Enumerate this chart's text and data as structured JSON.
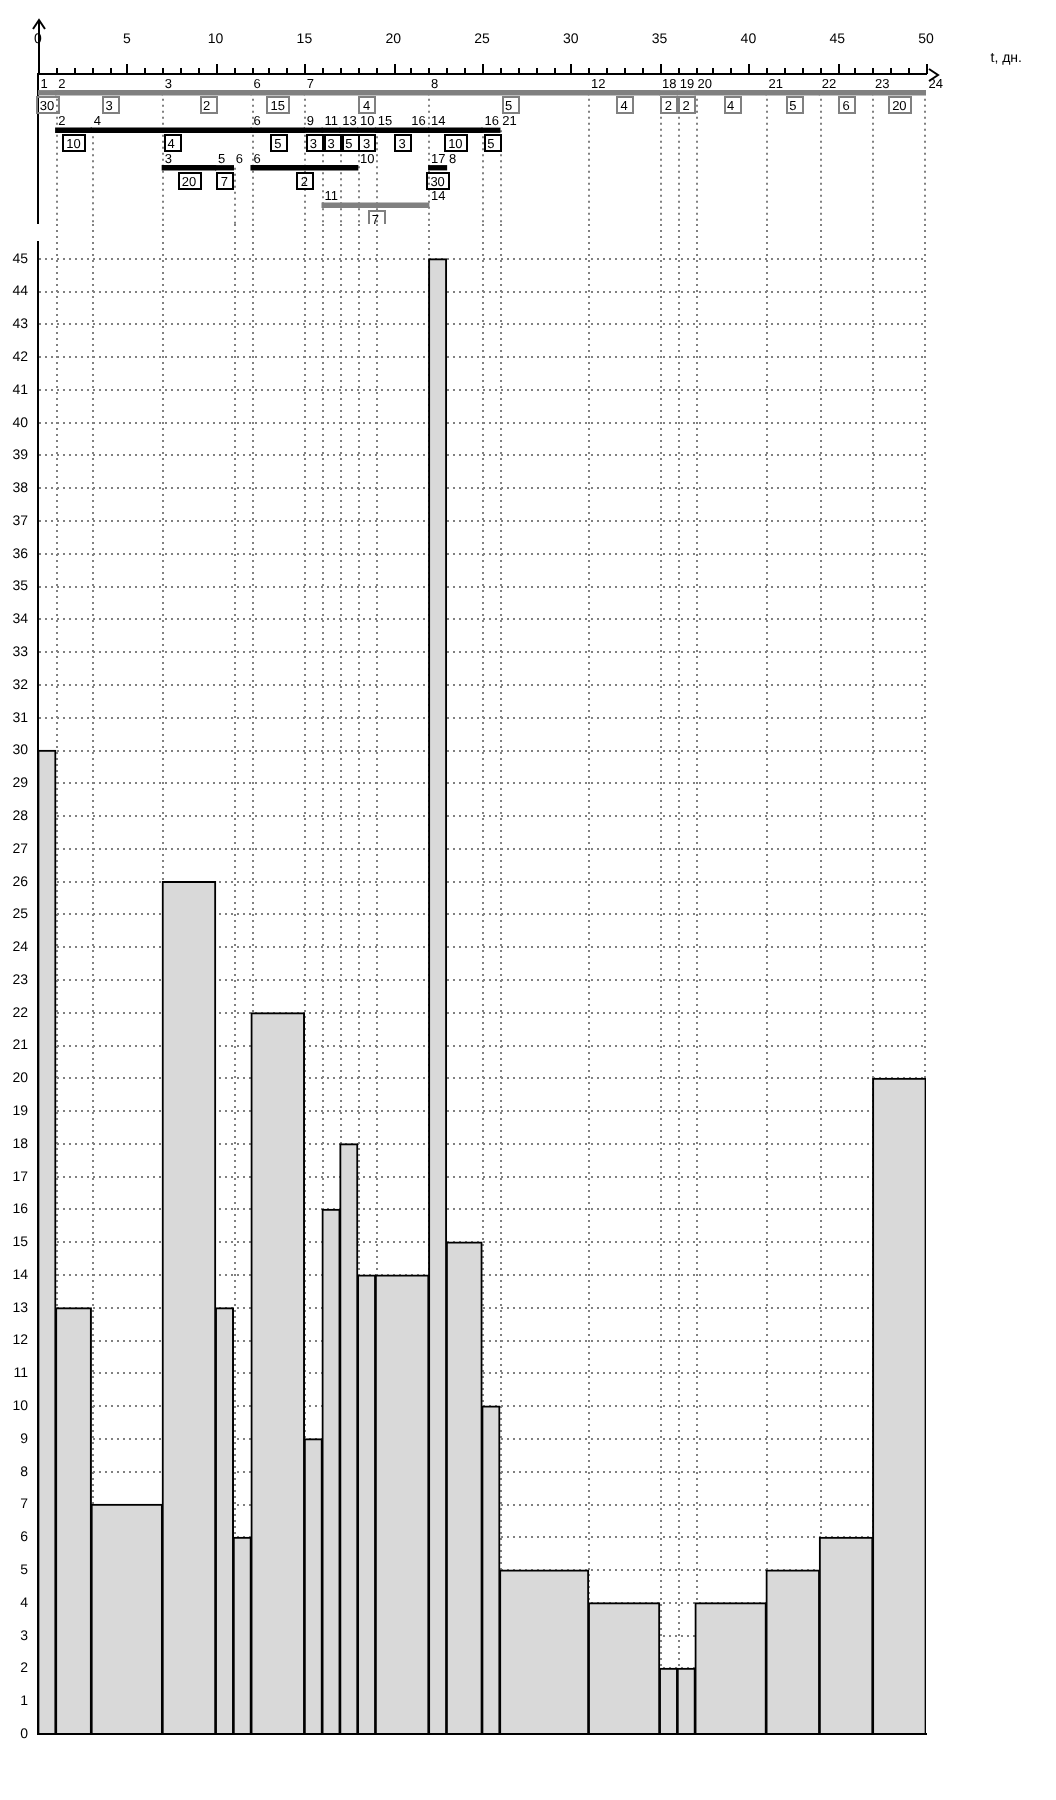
{
  "chart_data": [
    {
      "type": "bar",
      "orientation": "horizontal",
      "categories": [
        null,
        null,
        null,
        null
      ],
      "xlabel": "t, дн.",
      "xlim": [
        0,
        50
      ],
      "xticks": [
        0,
        {
          "value": 1,
          "label": null
        },
        {
          "value": 2,
          "label": null
        },
        {
          "value": 3,
          "label": null
        },
        {
          "value": 4,
          "label": null
        },
        5,
        {
          "value": 6,
          "label": null
        },
        {
          "value": 7,
          "label": null
        },
        {
          "value": 8,
          "label": null
        },
        {
          "value": 9,
          "label": null
        },
        10,
        {
          "value": 11,
          "label": null
        },
        {
          "value": 12,
          "label": null
        },
        {
          "value": 13,
          "label": null
        },
        {
          "value": 14,
          "label": null
        },
        15,
        {
          "value": 16,
          "label": null
        },
        {
          "value": 17,
          "label": null
        },
        {
          "value": 18,
          "label": null
        },
        {
          "value": 19,
          "label": null
        },
        20,
        {
          "value": 21,
          "label": null
        },
        {
          "value": 22,
          "label": null
        },
        {
          "value": 23,
          "label": null
        },
        {
          "value": 24,
          "label": null
        },
        25,
        {
          "value": 26,
          "label": null
        },
        {
          "value": 27,
          "label": null
        },
        {
          "value": 28,
          "label": null
        },
        {
          "value": 29,
          "label": null
        },
        30,
        {
          "value": 31,
          "label": null
        },
        {
          "value": 32,
          "label": null
        },
        {
          "value": 33,
          "label": null
        },
        {
          "value": 34,
          "label": null
        },
        35,
        {
          "value": 36,
          "label": null
        },
        {
          "value": 37,
          "label": null
        },
        {
          "value": 38,
          "label": null
        },
        {
          "value": 39,
          "label": null
        },
        40,
        {
          "value": 41,
          "label": null
        },
        {
          "value": 42,
          "label": null
        },
        {
          "value": 43,
          "label": null
        },
        {
          "value": 44,
          "label": null
        },
        45,
        {
          "value": 46,
          "label": null
        },
        {
          "value": 47,
          "label": null
        },
        {
          "value": 48,
          "label": null
        },
        {
          "value": 49,
          "label": null
        },
        50
      ],
      "series": [
        {
          "values": [
            1,
            2,
            3,
            6
          ],
          "base": [
            0,
            1,
            7,
            16
          ],
          "colors": [
            "#808080",
            "#000000",
            "#000000",
            "#808080"
          ]
        },
        {
          "values": [
            6,
            9,
            1,
            null
          ],
          "base": [
            1,
            3,
            10,
            null
          ],
          "colors": [
            "#808080",
            "#000000",
            "#000000",
            null
          ]
        },
        {
          "values": [
            5,
            3,
            6,
            null
          ],
          "base": [
            7,
            12,
            12,
            null
          ],
          "colors": [
            "#808080",
            "#000000",
            "#000000",
            null
          ]
        },
        {
          "values": [
            3,
            1,
            1,
            null
          ],
          "base": [
            12,
            15,
            22,
            null
          ],
          "colors": [
            "#808080",
            "#000000",
            "#000000",
            null
          ]
        },
        {
          "values": [
            7,
            1,
            null,
            null
          ],
          "base": [
            15,
            16,
            null,
            null
          ],
          "colors": [
            "#808080",
            "#000000",
            null,
            null
          ]
        },
        {
          "values": [
            9,
            1,
            null,
            null
          ],
          "base": [
            22,
            17,
            null,
            null
          ],
          "colors": [
            "#808080",
            "#000000",
            null,
            null
          ]
        },
        {
          "values": [
            4,
            1,
            null,
            null
          ],
          "base": [
            31,
            18,
            null,
            null
          ],
          "colors": [
            "#808080",
            "#000000",
            null,
            null
          ]
        },
        {
          "values": [
            1,
            3,
            null,
            null
          ],
          "base": [
            35,
            19,
            null,
            null
          ],
          "colors": [
            "#808080",
            "#000000",
            null,
            null
          ]
        },
        {
          "values": [
            1,
            3,
            null,
            null
          ],
          "base": [
            36,
            22,
            null,
            null
          ],
          "colors": [
            "#808080",
            "#000000",
            null,
            null
          ]
        },
        {
          "values": [
            4,
            1,
            null,
            null
          ],
          "base": [
            37,
            25,
            null,
            null
          ],
          "colors": [
            "#808080",
            "#000000",
            null,
            null
          ]
        },
        {
          "values": [
            3,
            null,
            null,
            null
          ],
          "base": [
            41,
            null,
            null,
            null
          ],
          "colors": [
            "#808080",
            null,
            null,
            null
          ]
        },
        {
          "values": [
            3,
            null,
            null,
            null
          ],
          "base": [
            44,
            null,
            null,
            null
          ],
          "colors": [
            "#808080",
            null,
            null,
            null
          ]
        },
        {
          "values": [
            3,
            null,
            null,
            null
          ],
          "base": [
            47,
            null,
            null,
            null
          ],
          "colors": [
            "#808080",
            null,
            null,
            null
          ]
        }
      ],
      "annotations": [
        {
          "text": "1",
          "x": 0
        },
        {
          "text": "30",
          "x": 0.5
        },
        {
          "text": "2",
          "x": 1
        },
        {
          "text": "3",
          "x": 4
        },
        {
          "text": "3",
          "x": 7
        },
        {
          "text": "2",
          "x": 9.5
        },
        {
          "text": "6",
          "x": 12
        },
        {
          "text": "15",
          "x": 13.5
        },
        {
          "text": "7",
          "x": 15
        },
        {
          "text": "4",
          "x": 18.5
        },
        {
          "text": "8",
          "x": 22
        },
        {
          "text": "5",
          "x": 26.5
        },
        {
          "text": "12",
          "x": 31
        },
        {
          "text": "4",
          "x": 33
        },
        {
          "text": "18",
          "x": 35
        },
        {
          "text": "2",
          "x": 35.5
        },
        {
          "text": "19",
          "x": 36
        },
        {
          "text": "2",
          "x": 36.5
        },
        {
          "text": "20",
          "x": 37
        },
        {
          "text": "4",
          "x": 39
        },
        {
          "text": "21",
          "x": 41
        },
        {
          "text": "5",
          "x": 42.5
        },
        {
          "text": "22",
          "x": 44
        },
        {
          "text": "6",
          "x": 45.5
        },
        {
          "text": "23",
          "x": 47
        },
        {
          "text": "20",
          "x": 48.5
        },
        {
          "text": "24",
          "x": 50
        },
        {
          "text": "2",
          "x": 1
        },
        {
          "text": "10",
          "x": 2
        },
        {
          "text": "4",
          "x": 3
        },
        {
          "text": "4",
          "x": 7.5
        },
        {
          "text": "6",
          "x": 12
        },
        {
          "text": "5",
          "x": 13.5
        },
        {
          "text": "9",
          "x": 15
        },
        {
          "text": "3",
          "x": 15.5
        },
        {
          "text": "11",
          "x": 16
        },
        {
          "text": "3",
          "x": 16.5
        },
        {
          "text": "13",
          "x": 17
        },
        {
          "text": "5",
          "x": 17.5
        },
        {
          "text": "10",
          "x": 18
        },
        {
          "text": "3",
          "x": 18.5
        },
        {
          "text": "15",
          "x": 19
        },
        {
          "text": "3",
          "x": 20.5
        },
        {
          "text": "16",
          "x": 22
        },
        {
          "text": "14",
          "x": 22
        },
        {
          "text": "10",
          "x": 23.5
        },
        {
          "text": "16",
          "x": 25
        },
        {
          "text": "5",
          "x": 25.5
        },
        {
          "text": "21",
          "x": 26
        },
        {
          "text": "3",
          "x": 7
        },
        {
          "text": "20",
          "x": 8.5
        },
        {
          "text": "5",
          "x": 10
        },
        {
          "text": "7",
          "x": 10.5
        },
        {
          "text": "6",
          "x": 11
        },
        {
          "text": "6",
          "x": 12
        },
        {
          "text": "2",
          "x": 15
        },
        {
          "text": "10",
          "x": 18
        },
        {
          "text": "17",
          "x": 22
        },
        {
          "text": "30",
          "x": 22.5
        },
        {
          "text": "8",
          "x": 23
        },
        {
          "text": "11",
          "x": 16
        },
        {
          "text": "7",
          "x": 19
        },
        {
          "text": "14",
          "x": 22
        }
      ],
      "ref_lines": [
        {
          "axis": "x",
          "value": 1,
          "color": "#808080",
          "line_style": "dotted"
        },
        {
          "axis": "x",
          "value": 3,
          "color": "#808080",
          "line_style": "dotted"
        },
        {
          "axis": "x",
          "value": 7,
          "color": "#808080",
          "line_style": "dotted"
        },
        {
          "axis": "x",
          "value": 11,
          "color": "#808080",
          "line_style": "dotted"
        },
        {
          "axis": "x",
          "value": 12,
          "color": "#808080",
          "line_style": "dotted"
        },
        {
          "axis": "x",
          "value": 15,
          "color": "#808080",
          "line_style": "dotted"
        },
        {
          "axis": "x",
          "value": 16,
          "color": "#808080",
          "line_style": "dotted"
        },
        {
          "axis": "x",
          "value": 17,
          "color": "#808080",
          "line_style": "dotted"
        },
        {
          "axis": "x",
          "value": 18,
          "color": "#808080",
          "line_style": "dotted"
        },
        {
          "axis": "x",
          "value": 19,
          "color": "#808080",
          "line_style": "dotted"
        },
        {
          "axis": "x",
          "value": 22,
          "color": "#808080",
          "line_style": "dotted"
        },
        {
          "axis": "x",
          "value": 25,
          "color": "#808080",
          "line_style": "dotted"
        },
        {
          "axis": "x",
          "value": 26,
          "color": "#808080",
          "line_style": "dotted"
        },
        {
          "axis": "x",
          "value": 31,
          "color": "#808080",
          "line_style": "dotted"
        },
        {
          "axis": "x",
          "value": 35,
          "color": "#808080",
          "line_style": "dotted"
        },
        {
          "axis": "x",
          "value": 36,
          "color": "#808080",
          "line_style": "dotted"
        },
        {
          "axis": "x",
          "value": 37,
          "color": "#808080",
          "line_style": "dotted"
        },
        {
          "axis": "x",
          "value": 41,
          "color": "#808080",
          "line_style": "dotted"
        },
        {
          "axis": "x",
          "value": 44,
          "color": "#808080",
          "line_style": "dotted"
        },
        {
          "axis": "x",
          "value": 47,
          "color": "#808080",
          "line_style": "dotted"
        }
      ]
    },
    {
      "type": "histogram",
      "bins": [
        0,
        1,
        3,
        7,
        10,
        11,
        12,
        15,
        16,
        17,
        18,
        19,
        22,
        23,
        25,
        26,
        31,
        35,
        36,
        37,
        41,
        44,
        47,
        50
      ],
      "values": [
        30,
        13,
        7,
        26,
        13,
        6,
        22,
        9,
        16,
        18,
        14,
        14,
        45,
        15,
        10,
        5,
        4,
        2,
        2,
        4,
        5,
        6,
        20
      ],
      "color": "#d9d9d9",
      "xlim": [
        0,
        50
      ],
      "ylim": [
        0,
        45.5
      ],
      "yticks": [
        0,
        1,
        2,
        3,
        4,
        5,
        6,
        7,
        8,
        9,
        10,
        11,
        12,
        13,
        14,
        15,
        16,
        17,
        18,
        19,
        20,
        21,
        22,
        23,
        24,
        25,
        26,
        27,
        28,
        29,
        30,
        31,
        32,
        33,
        34,
        35,
        36,
        37,
        38,
        39,
        40,
        41,
        42,
        43,
        44,
        45
      ],
      "grid": "y",
      "tick_labels": "y",
      "ref_lines": [
        {
          "axis": "x",
          "value": 1,
          "color": "#808080",
          "line_style": "dotted"
        },
        {
          "axis": "x",
          "value": 3,
          "color": "#808080",
          "line_style": "dotted"
        },
        {
          "axis": "x",
          "value": 7,
          "color": "#808080",
          "line_style": "dotted"
        },
        {
          "axis": "x",
          "value": 11,
          "color": "#808080",
          "line_style": "dotted"
        },
        {
          "axis": "x",
          "value": 12,
          "color": "#808080",
          "line_style": "dotted"
        },
        {
          "axis": "x",
          "value": 15,
          "color": "#808080",
          "line_style": "dotted"
        },
        {
          "axis": "x",
          "value": 16,
          "color": "#808080",
          "line_style": "dotted"
        },
        {
          "axis": "x",
          "value": 17,
          "color": "#808080",
          "line_style": "dotted"
        },
        {
          "axis": "x",
          "value": 18,
          "color": "#808080",
          "line_style": "dotted"
        },
        {
          "axis": "x",
          "value": 19,
          "color": "#808080",
          "line_style": "dotted"
        },
        {
          "axis": "x",
          "value": 22,
          "color": "#808080",
          "line_style": "dotted"
        },
        {
          "axis": "x",
          "value": 25,
          "color": "#808080",
          "line_style": "dotted"
        },
        {
          "axis": "x",
          "value": 26,
          "color": "#808080",
          "line_style": "dotted"
        },
        {
          "axis": "x",
          "value": 31,
          "color": "#808080",
          "line_style": "dotted"
        },
        {
          "axis": "x",
          "value": 35,
          "color": "#808080",
          "line_style": "dotted"
        },
        {
          "axis": "x",
          "value": 36,
          "color": "#808080",
          "line_style": "dotted"
        },
        {
          "axis": "x",
          "value": 37,
          "color": "#808080",
          "line_style": "dotted"
        },
        {
          "axis": "x",
          "value": 41,
          "color": "#808080",
          "line_style": "dotted"
        },
        {
          "axis": "x",
          "value": 44,
          "color": "#808080",
          "line_style": "dotted"
        },
        {
          "axis": "x",
          "value": 47,
          "color": "#808080",
          "line_style": "dotted"
        }
      ]
    }
  ]
}
